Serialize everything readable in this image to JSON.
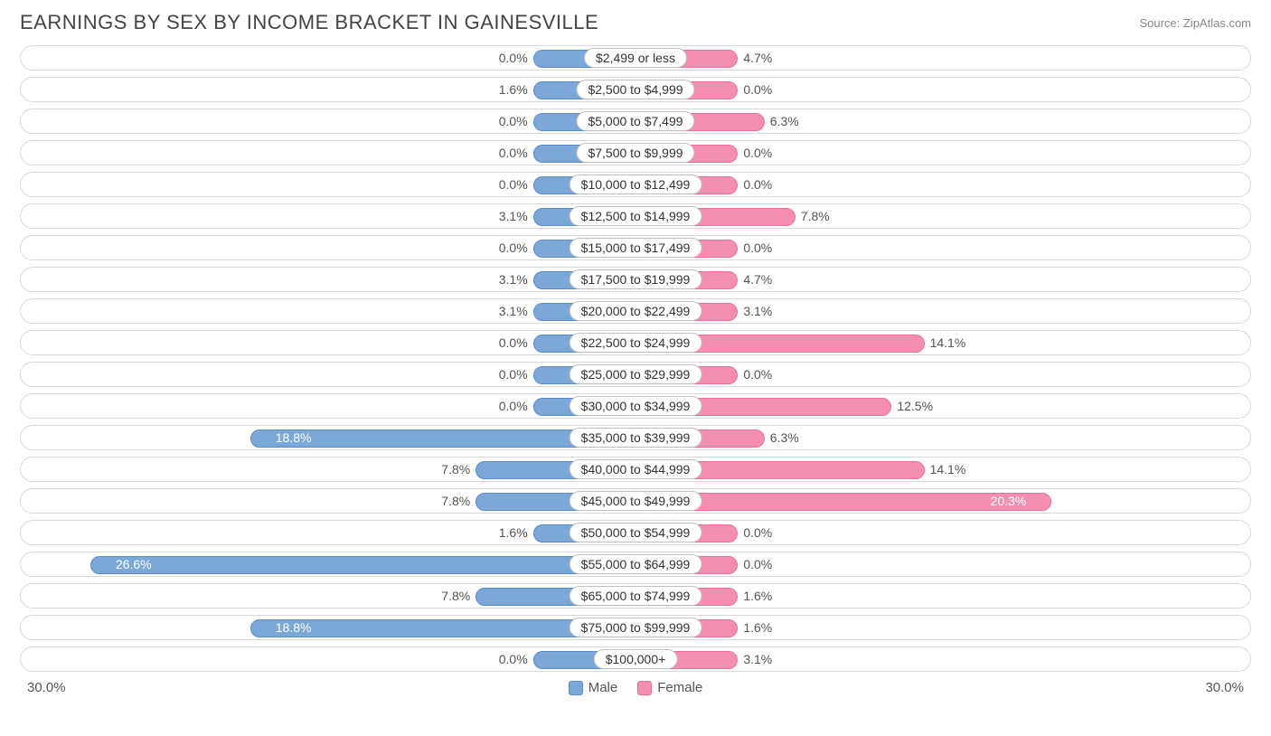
{
  "title": "EARNINGS BY SEX BY INCOME BRACKET IN GAINESVILLE",
  "source": "Source: ZipAtlas.com",
  "axis_max_label": "30.0%",
  "axis_max_value": 30.0,
  "min_bar_pct": 5.0,
  "colors": {
    "male_fill": "#7ba7d9",
    "male_stroke": "#5a8cc9",
    "female_fill": "#f48fb1",
    "female_stroke": "#ec6f99",
    "track_border": "#d8d8d8",
    "pill_border": "#bfbfbf",
    "text": "#555"
  },
  "legend": {
    "male": "Male",
    "female": "Female"
  },
  "rows": [
    {
      "label": "$2,499 or less",
      "male": 0.0,
      "female": 4.7
    },
    {
      "label": "$2,500 to $4,999",
      "male": 1.6,
      "female": 0.0
    },
    {
      "label": "$5,000 to $7,499",
      "male": 0.0,
      "female": 6.3
    },
    {
      "label": "$7,500 to $9,999",
      "male": 0.0,
      "female": 0.0
    },
    {
      "label": "$10,000 to $12,499",
      "male": 0.0,
      "female": 0.0
    },
    {
      "label": "$12,500 to $14,999",
      "male": 3.1,
      "female": 7.8
    },
    {
      "label": "$15,000 to $17,499",
      "male": 0.0,
      "female": 0.0
    },
    {
      "label": "$17,500 to $19,999",
      "male": 3.1,
      "female": 4.7
    },
    {
      "label": "$20,000 to $22,499",
      "male": 3.1,
      "female": 3.1
    },
    {
      "label": "$22,500 to $24,999",
      "male": 0.0,
      "female": 14.1
    },
    {
      "label": "$25,000 to $29,999",
      "male": 0.0,
      "female": 0.0
    },
    {
      "label": "$30,000 to $34,999",
      "male": 0.0,
      "female": 12.5
    },
    {
      "label": "$35,000 to $39,999",
      "male": 18.8,
      "female": 6.3
    },
    {
      "label": "$40,000 to $44,999",
      "male": 7.8,
      "female": 14.1
    },
    {
      "label": "$45,000 to $49,999",
      "male": 7.8,
      "female": 20.3
    },
    {
      "label": "$50,000 to $54,999",
      "male": 1.6,
      "female": 0.0
    },
    {
      "label": "$55,000 to $64,999",
      "male": 26.6,
      "female": 0.0
    },
    {
      "label": "$65,000 to $74,999",
      "male": 7.8,
      "female": 1.6
    },
    {
      "label": "$75,000 to $99,999",
      "male": 18.8,
      "female": 1.6
    },
    {
      "label": "$100,000+",
      "male": 0.0,
      "female": 3.1
    }
  ]
}
